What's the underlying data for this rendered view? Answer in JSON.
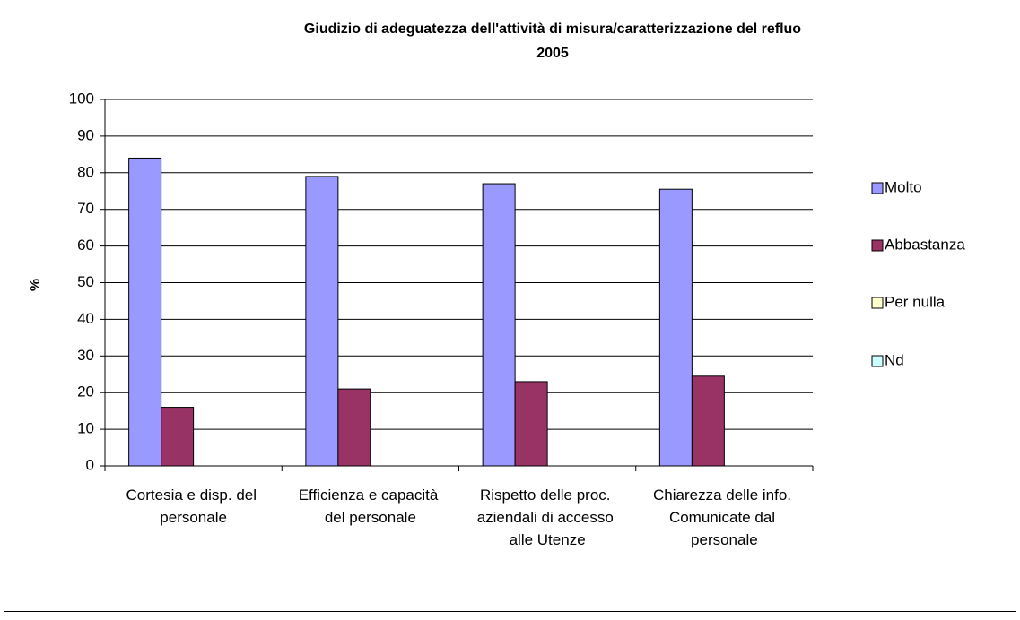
{
  "chart_data": {
    "type": "bar",
    "title": "Giudizio di adeguatezza dell'attività di misura/caratterizzazione del refluo",
    "subtitle": "2005",
    "y_label": "%",
    "categories": [
      "Cortesia e disp. del personale",
      "Efficienza e capacità del personale",
      "Rispetto delle proc. aziendali di accesso alle Utenze",
      "Chiarezza delle info. Comunicate dal personale"
    ],
    "series": [
      {
        "name": "Molto",
        "color": "#9999ff",
        "values": [
          84,
          79,
          77,
          75.5
        ]
      },
      {
        "name": "Abbastanza",
        "color": "#993366",
        "values": [
          16,
          21,
          23,
          24.5
        ]
      },
      {
        "name": "Per nulla",
        "color": "#ffffcc",
        "values": [
          0,
          0,
          0,
          0
        ]
      },
      {
        "name": "Nd",
        "color": "#ccffff",
        "values": [
          0,
          0,
          0,
          0
        ]
      }
    ],
    "ylim": [
      0,
      100
    ],
    "yticks": [
      0,
      10,
      20,
      30,
      40,
      50,
      60,
      70,
      80,
      90,
      100
    ],
    "grid": true,
    "legend": "right"
  }
}
